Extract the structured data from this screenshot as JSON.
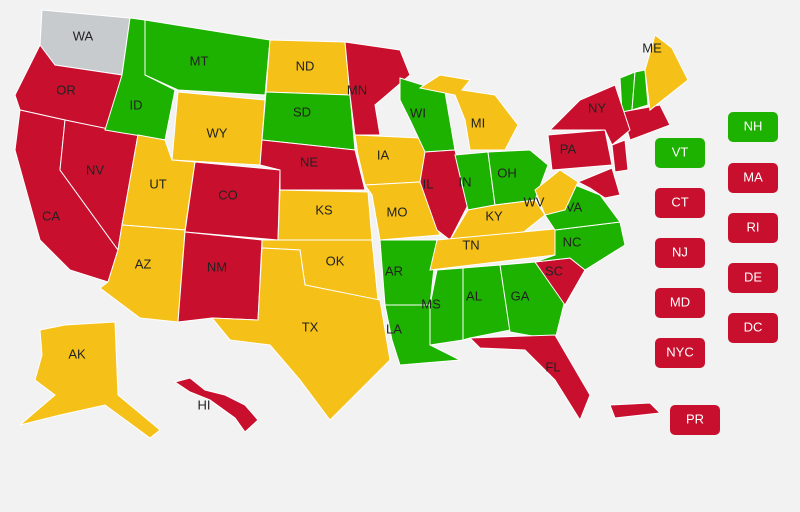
{
  "states": [
    {
      "label": "WA",
      "color": "#c8cbcd"
    },
    {
      "label": "OR",
      "color": "#c8102e"
    },
    {
      "label": "CA",
      "color": "#c8102e"
    },
    {
      "label": "NV",
      "color": "#c8102e"
    },
    {
      "label": "ID",
      "color": "#1db100"
    },
    {
      "label": "MT",
      "color": "#1db100"
    },
    {
      "label": "WY",
      "color": "#f5c018"
    },
    {
      "label": "UT",
      "color": "#f5c018"
    },
    {
      "label": "AZ",
      "color": "#f5c018"
    },
    {
      "label": "CO",
      "color": "#c8102e"
    },
    {
      "label": "NM",
      "color": "#c8102e"
    },
    {
      "label": "ND",
      "color": "#f5c018"
    },
    {
      "label": "SD",
      "color": "#1db100"
    },
    {
      "label": "NE",
      "color": "#c8102e"
    },
    {
      "label": "KS",
      "color": "#f5c018"
    },
    {
      "label": "OK",
      "color": "#f5c018"
    },
    {
      "label": "TX",
      "color": "#f5c018"
    },
    {
      "label": "MN",
      "color": "#c8102e"
    },
    {
      "label": "IA",
      "color": "#f5c018"
    },
    {
      "label": "MO",
      "color": "#f5c018"
    },
    {
      "label": "AR",
      "color": "#1db100"
    },
    {
      "label": "LA",
      "color": "#1db100"
    },
    {
      "label": "WI",
      "color": "#1db100"
    },
    {
      "label": "IL",
      "color": "#c8102e"
    },
    {
      "label": "MI",
      "color": "#f5c018"
    },
    {
      "label": "IN",
      "color": "#1db100"
    },
    {
      "label": "OH",
      "color": "#1db100"
    },
    {
      "label": "KY",
      "color": "#f5c018"
    },
    {
      "label": "TN",
      "color": "#f5c018"
    },
    {
      "label": "MS",
      "color": "#1db100"
    },
    {
      "label": "AL",
      "color": "#1db100"
    },
    {
      "label": "GA",
      "color": "#1db100"
    },
    {
      "label": "FL",
      "color": "#c8102e"
    },
    {
      "label": "SC",
      "color": "#c8102e"
    },
    {
      "label": "NC",
      "color": "#1db100"
    },
    {
      "label": "VA",
      "color": "#1db100"
    },
    {
      "label": "WV",
      "color": "#f5c018"
    },
    {
      "label": "PA",
      "color": "#c8102e"
    },
    {
      "label": "NY",
      "color": "#c8102e"
    },
    {
      "label": "ME",
      "color": "#f5c018"
    },
    {
      "label": "AK",
      "color": "#f5c018"
    },
    {
      "label": "HI",
      "color": "#c8102e"
    }
  ],
  "boxes": [
    {
      "label": "VT",
      "color": "#1db100"
    },
    {
      "label": "CT",
      "color": "#c8102e"
    },
    {
      "label": "NJ",
      "color": "#c8102e"
    },
    {
      "label": "MD",
      "color": "#c8102e"
    },
    {
      "label": "NYC",
      "color": "#c8102e"
    },
    {
      "label": "NH",
      "color": "#1db100"
    },
    {
      "label": "MA",
      "color": "#c8102e"
    },
    {
      "label": "RI",
      "color": "#c8102e"
    },
    {
      "label": "DE",
      "color": "#c8102e"
    },
    {
      "label": "DC",
      "color": "#c8102e"
    },
    {
      "label": "PR",
      "color": "#c8102e"
    }
  ]
}
